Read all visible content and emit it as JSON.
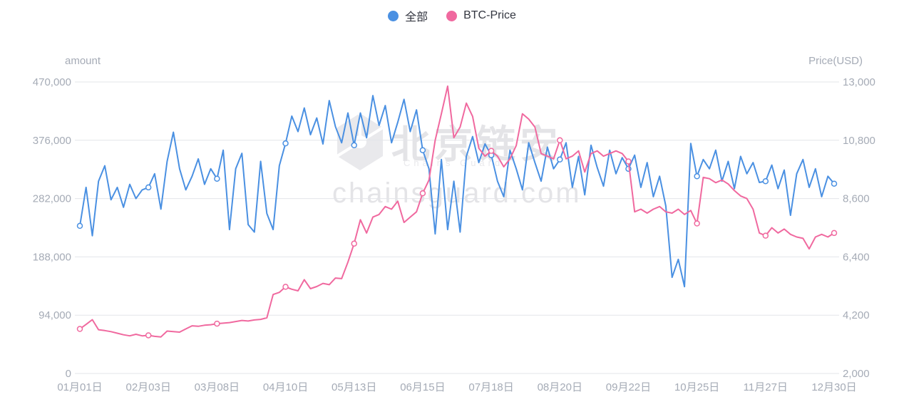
{
  "page": {
    "background": "#ffffff"
  },
  "legend": {
    "items": [
      {
        "label": "全部",
        "color": "#4a90e2"
      },
      {
        "label": "BTC-Price",
        "color": "#f0699f"
      }
    ]
  },
  "watermark": {
    "brand_cn": "北京链安",
    "brand_en": "Chains Guard",
    "domain": "chainsguard.com"
  },
  "chart_data": {
    "type": "line",
    "title": "",
    "ylabel_left": "amount",
    "ylabel_right": "Price(USD)",
    "legend_position": "top",
    "grid": true,
    "left_ylim": [
      0,
      470000
    ],
    "right_ylim": [
      2000,
      13000
    ],
    "left_axis_ticks": [
      0,
      94000,
      188000,
      282000,
      376000,
      470000
    ],
    "right_axis_ticks": [
      2000,
      4200,
      6400,
      8600,
      10800,
      13000
    ],
    "x_tick_labels": [
      "01月01日",
      "02月03日",
      "03月08日",
      "04月10日",
      "05月13日",
      "06月15日",
      "07月18日",
      "08月20日",
      "09月22日",
      "10月25日",
      "11月27日",
      "12月30日"
    ],
    "points_per_tick": 11,
    "series": [
      {
        "name": "全部",
        "axis": "left",
        "color": "#4a90e2",
        "values": [
          238000,
          300000,
          222000,
          310000,
          335000,
          280000,
          300000,
          268000,
          305000,
          282000,
          296000,
          300000,
          322000,
          265000,
          342000,
          389000,
          330000,
          296000,
          318000,
          346000,
          305000,
          330000,
          314000,
          360000,
          232000,
          330000,
          355000,
          240000,
          228000,
          342000,
          258000,
          232000,
          335000,
          371000,
          415000,
          390000,
          428000,
          385000,
          412000,
          370000,
          440000,
          398000,
          372000,
          420000,
          368000,
          420000,
          380000,
          448000,
          400000,
          432000,
          372000,
          405000,
          442000,
          390000,
          425000,
          360000,
          330000,
          225000,
          345000,
          232000,
          310000,
          228000,
          350000,
          382000,
          340000,
          370000,
          352000,
          310000,
          285000,
          360000,
          330000,
          296000,
          372000,
          340000,
          310000,
          365000,
          330000,
          345000,
          372000,
          300000,
          350000,
          288000,
          368000,
          332000,
          302000,
          360000,
          322000,
          348000,
          330000,
          352000,
          300000,
          340000,
          285000,
          318000,
          270000,
          155000,
          184000,
          140000,
          371000,
          318000,
          345000,
          330000,
          360000,
          310000,
          342000,
          298000,
          350000,
          322000,
          340000,
          308000,
          310000,
          336000,
          298000,
          328000,
          255000,
          322000,
          345000,
          300000,
          330000,
          285000,
          318000,
          306000
        ]
      },
      {
        "name": "BTC-Price",
        "axis": "right",
        "color": "#f0699f",
        "values": [
          3680,
          3850,
          4030,
          3650,
          3620,
          3580,
          3520,
          3460,
          3420,
          3480,
          3420,
          3440,
          3400,
          3380,
          3600,
          3580,
          3560,
          3680,
          3800,
          3780,
          3820,
          3840,
          3880,
          3900,
          3920,
          3960,
          4000,
          3980,
          4020,
          4040,
          4100,
          4980,
          5060,
          5270,
          5180,
          5120,
          5540,
          5200,
          5280,
          5400,
          5350,
          5600,
          5580,
          6200,
          6900,
          7800,
          7300,
          7900,
          8000,
          8300,
          8200,
          8500,
          7700,
          7900,
          8100,
          8800,
          9300,
          10800,
          11800,
          12840,
          10900,
          11300,
          12200,
          11700,
          10500,
          10200,
          10400,
          10200,
          9800,
          10100,
          10600,
          11800,
          11600,
          11300,
          10300,
          10200,
          10100,
          10800,
          10100,
          10200,
          10400,
          9600,
          10300,
          10400,
          10200,
          10300,
          10400,
          10300,
          10000,
          8100,
          8200,
          8050,
          8200,
          8300,
          8100,
          8050,
          8200,
          8000,
          8150,
          7660,
          9400,
          9350,
          9200,
          9300,
          9150,
          8900,
          8700,
          8600,
          8200,
          7300,
          7200,
          7500,
          7300,
          7450,
          7250,
          7150,
          7100,
          6700,
          7150,
          7250,
          7150,
          7300
        ]
      }
    ]
  }
}
